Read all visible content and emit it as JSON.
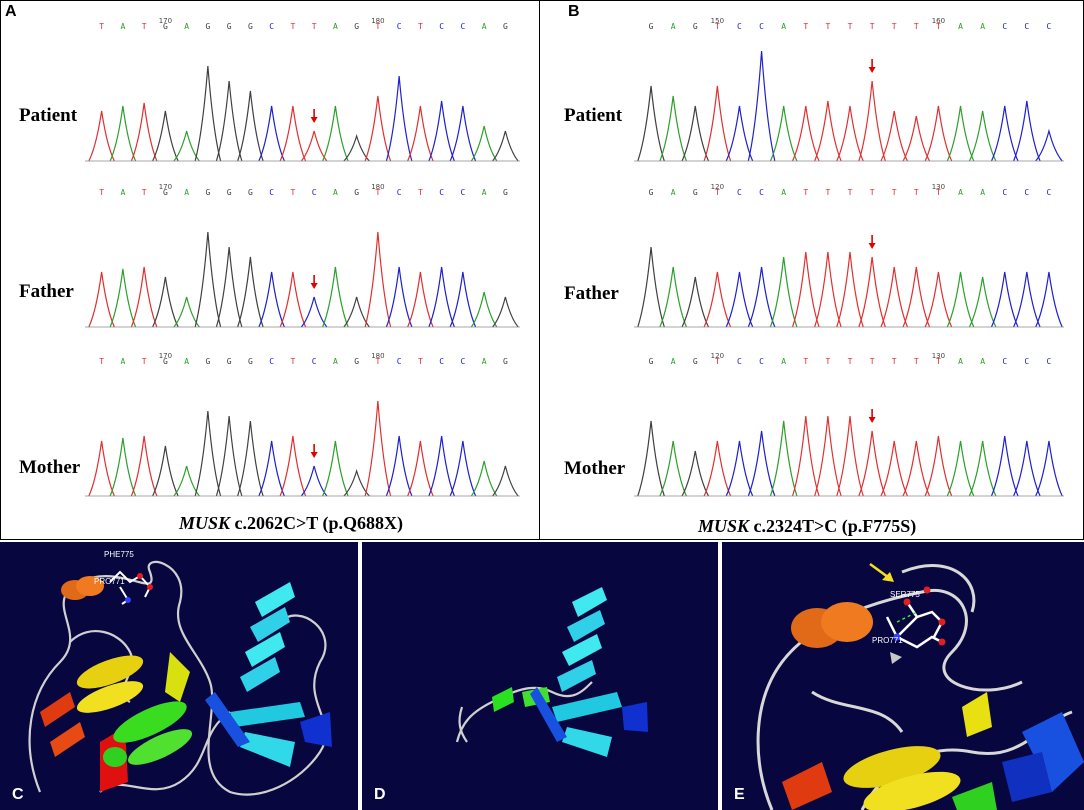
{
  "panelA": {
    "label": "A",
    "rows": [
      {
        "name": "Patient",
        "bases": "TATGAGGGCTTAGTCTCCAG",
        "ticks": [
          "170",
          "180"
        ]
      },
      {
        "name": "Father",
        "bases": "TATGAGGGCTCAGTCTCCAG",
        "ticks": [
          "170",
          "180"
        ]
      },
      {
        "name": "Mother",
        "bases": "TATGAGGGCTCAGTCTCCAG",
        "ticks": [
          "170",
          "180"
        ]
      }
    ],
    "caption_gene": "MUSK",
    "caption_rest": " c.2062C>T (p.Q688X)"
  },
  "panelB": {
    "label": "B",
    "rows": [
      {
        "name": "Patient",
        "bases": "GAGTCCATTTTTTTAACCC",
        "ticks": [
          "150",
          "160"
        ]
      },
      {
        "name": "Father",
        "bases": "GAGTCCATTTTTTTAACCC",
        "ticks": [
          "120",
          "130"
        ]
      },
      {
        "name": "Mother",
        "bases": "GAGTCCATTTTTTTAACCC",
        "ticks": [
          "120",
          "130"
        ]
      }
    ],
    "caption_gene": "MUSK",
    "caption_rest": " c.2324T>C (p.F775S)"
  },
  "panelC": {
    "label": "C",
    "residue1": "PHE775",
    "residue2": "PRO771"
  },
  "panelD": {
    "label": "D"
  },
  "panelE": {
    "label": "E",
    "residue1": "SER775",
    "residue2": "PRO771"
  },
  "colors": {
    "A": "#2ca02c",
    "C": "#2020d0",
    "G": "#404040",
    "T": "#e03030",
    "arrow": "#e00000",
    "protein_bg": "#07063f"
  }
}
